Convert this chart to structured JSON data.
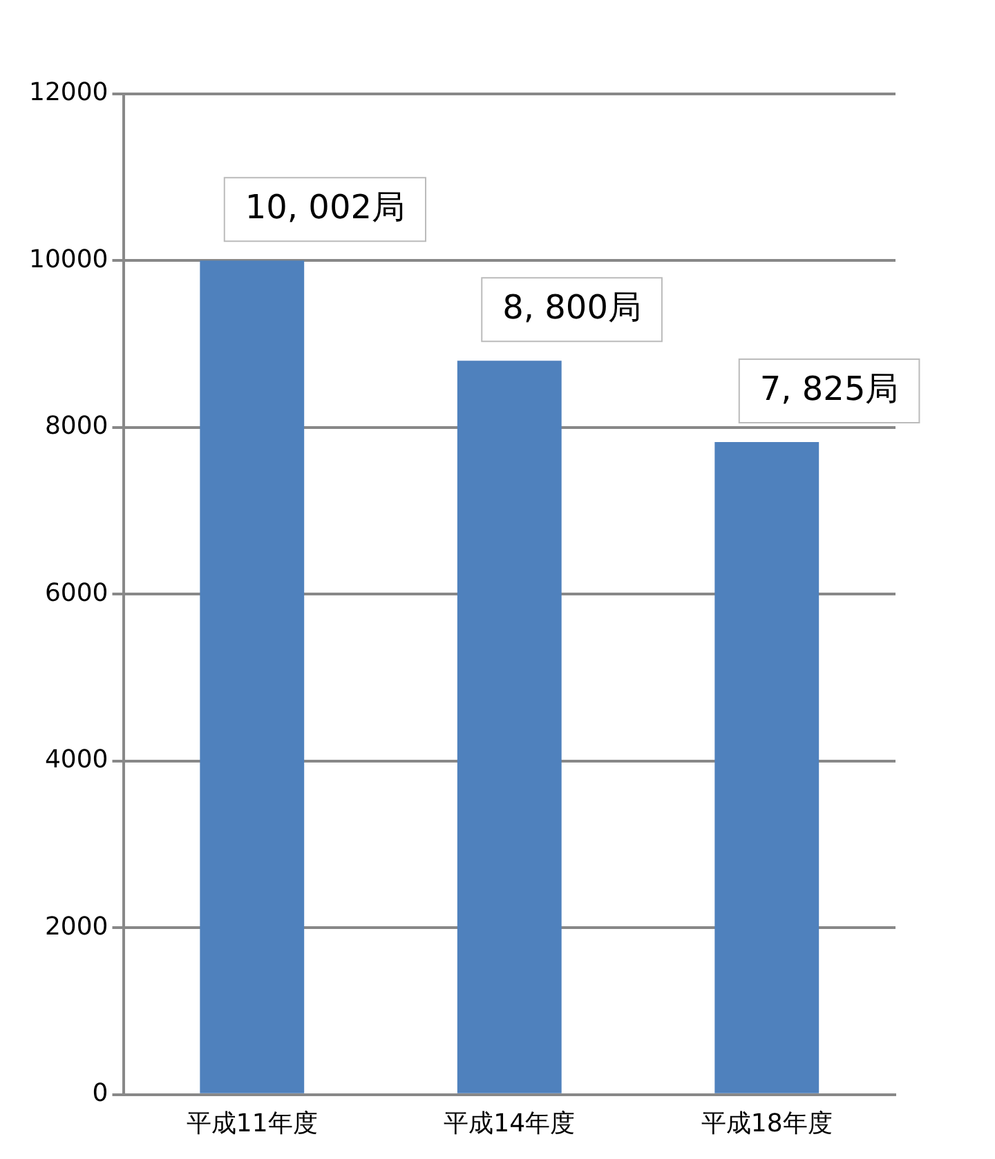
{
  "chart_data": {
    "type": "bar",
    "categories": [
      "平成11年度",
      "平成14年度",
      "平成18年度"
    ],
    "values": [
      10002,
      8800,
      7825
    ],
    "annotations": [
      {
        "text": "10, 002局",
        "x": "平成11年度",
        "y": 10002
      },
      {
        "text": "8, 800局",
        "x": "平成14年度",
        "y": 8800
      },
      {
        "text": "7, 825局",
        "x": "平成18年度",
        "y": 7825
      }
    ],
    "color": "#4f81bd",
    "ylim": [
      0,
      12000
    ],
    "yticks": [
      0,
      2000,
      4000,
      6000,
      8000,
      10000,
      12000
    ],
    "grid": "y",
    "legend": false
  }
}
